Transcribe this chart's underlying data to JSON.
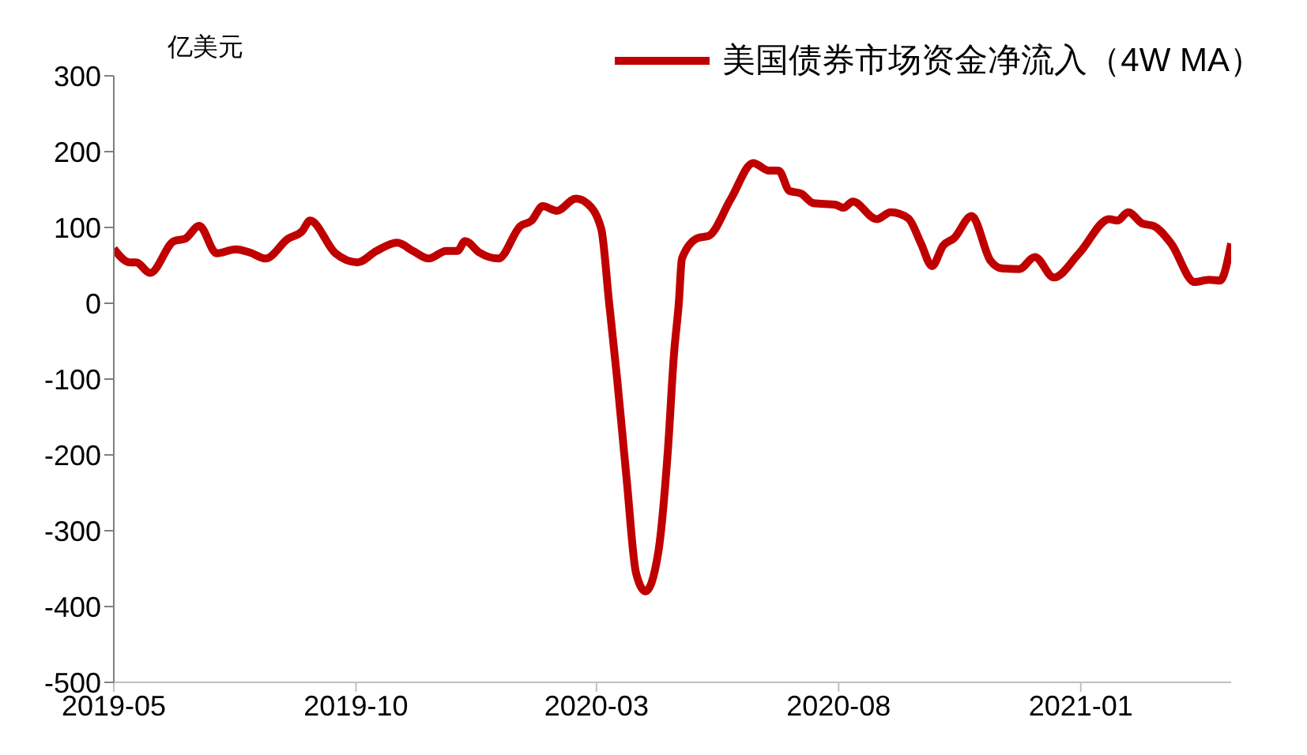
{
  "chart_data": {
    "type": "line",
    "ylabel": "亿美元",
    "xlim": [
      "2019-05-01",
      "2021-04-06"
    ],
    "xticks": [
      "2019-05",
      "2019-10",
      "2020-03",
      "2020-08",
      "2021-01"
    ],
    "ylim": [
      -500,
      300
    ],
    "yticks": [
      -500,
      -400,
      -300,
      -200,
      -100,
      0,
      100,
      200,
      300
    ],
    "legend": "top right",
    "marker": "none",
    "line_style": "solid",
    "x": [
      "2019-05-01",
      "2019-05-11",
      "2019-05-15",
      "2019-05-24",
      "2019-06-08",
      "2019-06-15",
      "2019-06-24",
      "2019-07-05",
      "2019-07-17",
      "2019-07-26",
      "2019-08-05",
      "2019-08-19",
      "2019-08-28",
      "2019-09-02",
      "2019-09-18",
      "2019-10-02",
      "2019-10-14",
      "2019-10-27",
      "2019-11-06",
      "2019-11-16",
      "2019-11-27",
      "2019-12-04",
      "2019-12-09",
      "2019-12-18",
      "2019-12-30",
      "2020-01-13",
      "2020-01-20",
      "2020-01-27",
      "2020-02-05",
      "2020-02-17",
      "2020-02-24",
      "2020-03-04",
      "2020-03-09",
      "2020-03-14",
      "2020-03-20",
      "2020-03-26",
      "2020-04-01",
      "2020-04-09",
      "2020-04-15",
      "2020-04-19",
      "2020-04-22",
      "2020-04-24",
      "2020-05-04",
      "2020-05-11",
      "2020-05-25",
      "2020-06-08",
      "2020-06-18",
      "2020-06-24",
      "2020-07-01",
      "2020-07-08",
      "2020-07-16",
      "2020-07-30",
      "2020-08-04",
      "2020-08-10",
      "2020-08-25",
      "2020-09-03",
      "2020-09-14",
      "2020-09-22",
      "2020-09-29",
      "2020-10-06",
      "2020-10-13",
      "2020-10-24",
      "2020-11-05",
      "2020-11-12",
      "2020-11-23",
      "2020-12-03",
      "2020-12-15",
      "2020-12-31",
      "2021-01-19",
      "2021-01-24",
      "2021-01-31",
      "2021-02-09",
      "2021-02-16",
      "2021-02-27",
      "2021-03-14",
      "2021-03-23",
      "2021-03-30",
      "2021-04-06"
    ],
    "series": [
      {
        "name": "美国债券市场资金净流入（4W MA）",
        "color": "#c00000",
        "values": [
          72,
          54,
          54,
          40,
          82,
          85,
          102,
          66,
          71,
          67,
          59,
          85,
          95,
          109,
          66,
          54,
          69,
          80,
          69,
          59,
          69,
          69,
          82,
          67,
          59,
          102,
          109,
          128,
          122,
          138,
          132,
          98,
          0,
          -99,
          -231,
          -356,
          -380,
          -329,
          -197,
          -66,
          0,
          59,
          86,
          89,
          138,
          185,
          175,
          175,
          148,
          145,
          132,
          130,
          126,
          134,
          111,
          120,
          112,
          79,
          49,
          76,
          86,
          115,
          56,
          46,
          45,
          61,
          34,
          66,
          111,
          109,
          120,
          105,
          102,
          79,
          28,
          31,
          30,
          79
        ]
      }
    ]
  }
}
